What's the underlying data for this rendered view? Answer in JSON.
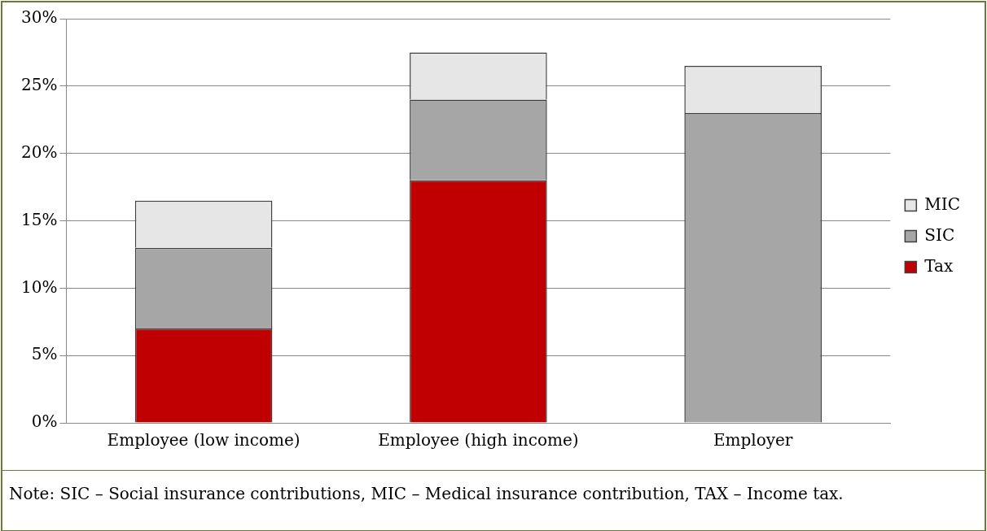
{
  "chart_data": {
    "type": "bar",
    "stacked": true,
    "categories": [
      "Employee (low income)",
      "Employee (high income)",
      "Employer"
    ],
    "series": [
      {
        "name": "Tax",
        "color": "#c00000",
        "values": [
          7,
          18,
          0
        ]
      },
      {
        "name": "SIC",
        "color": "#a6a6a6",
        "values": [
          6,
          6,
          23
        ]
      },
      {
        "name": "MIC",
        "color": "#e6e6e6",
        "values": [
          3.5,
          3.5,
          3.5
        ]
      }
    ],
    "ylim": [
      0,
      30
    ],
    "yticks": [
      {
        "value": 0,
        "label": "0%"
      },
      {
        "value": 5,
        "label": "5%"
      },
      {
        "value": 10,
        "label": "10%"
      },
      {
        "value": 15,
        "label": "15%"
      },
      {
        "value": 20,
        "label": "20%"
      },
      {
        "value": 25,
        "label": "25%"
      },
      {
        "value": 30,
        "label": "30%"
      }
    ],
    "grid": "y",
    "legend": "right",
    "annotations": [
      "Note: SIC – Social insurance contributions, MIC – Medical insurance contribution, TAX – Income tax."
    ]
  }
}
